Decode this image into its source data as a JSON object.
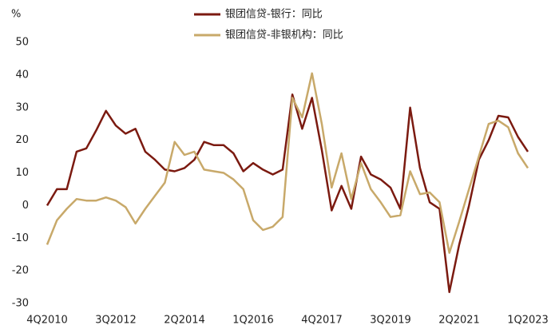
{
  "chart_data": {
    "type": "line",
    "y_label": "%",
    "categories": [
      "4Q2010",
      null,
      null,
      null,
      null,
      null,
      null,
      "3Q2012",
      null,
      null,
      null,
      null,
      null,
      null,
      "2Q2014",
      null,
      null,
      null,
      null,
      null,
      null,
      "1Q2016",
      null,
      null,
      null,
      null,
      null,
      null,
      "4Q2017",
      null,
      null,
      null,
      null,
      null,
      null,
      "3Q2019",
      null,
      null,
      null,
      null,
      null,
      null,
      "2Q2021",
      null,
      null,
      null,
      null,
      null,
      null,
      "1Q2023"
    ],
    "series": [
      {
        "name": "银团信贷-银行：同比",
        "color": "#7b1a10",
        "values": [
          0,
          5,
          5,
          16.5,
          17.5,
          23,
          29,
          24.5,
          22,
          23.5,
          16.5,
          14,
          11,
          10.5,
          11.5,
          14,
          19.5,
          18.5,
          18.5,
          16,
          10.5,
          13,
          11,
          9.5,
          11,
          34,
          23.5,
          33,
          17,
          -1.5,
          6,
          -1,
          15,
          9.5,
          8,
          5.5,
          -1,
          30,
          11.5,
          1,
          -1,
          -26.5,
          -12,
          0,
          14,
          20,
          27.5,
          27,
          21,
          16.5
        ]
      },
      {
        "name": "银团信贷-非银机构：同比",
        "color": "#c8a96a",
        "values": [
          -12,
          -4.5,
          -1,
          2,
          1.5,
          1.5,
          2.5,
          1.5,
          -0.5,
          -5.5,
          -1,
          3,
          7,
          19.5,
          15.5,
          16.5,
          11,
          10.5,
          10,
          8,
          5,
          -4.5,
          -7.5,
          -6.5,
          -3.5,
          33,
          27,
          40.5,
          25,
          5.5,
          16,
          2,
          13,
          5,
          1,
          -3.5,
          -3,
          10.5,
          3.5,
          4,
          1,
          -14.5,
          -5,
          5,
          15,
          25,
          26,
          24,
          16,
          11.5
        ]
      }
    ],
    "ylim": [
      -30,
      50
    ],
    "yticks": [
      -30,
      -20,
      -10,
      0,
      10,
      20,
      30,
      40,
      50
    ],
    "grid": false
  }
}
